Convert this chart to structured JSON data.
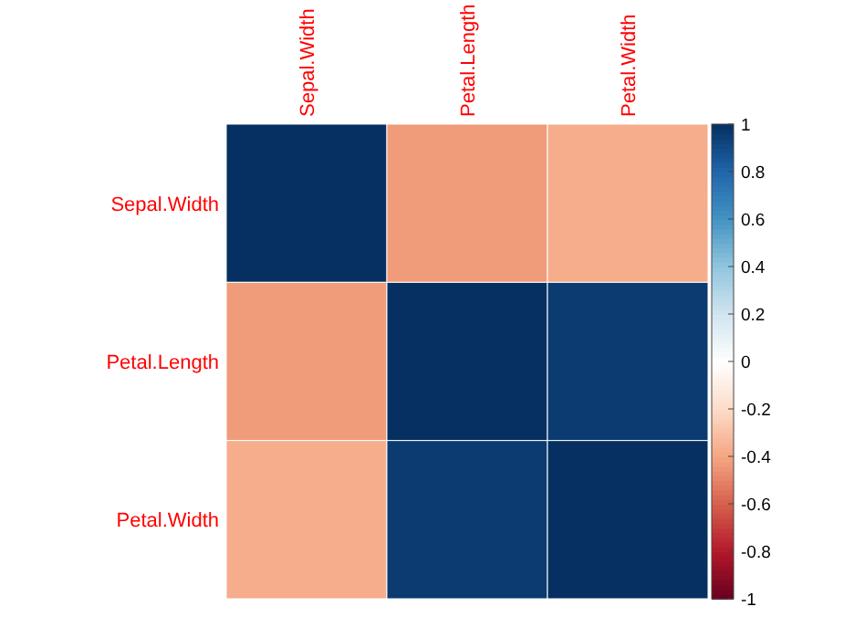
{
  "chart_data": {
    "type": "heatmap",
    "categories": [
      "Sepal.Width",
      "Petal.Length",
      "Petal.Width"
    ],
    "y_categories": [
      "Sepal.Width",
      "Petal.Length",
      "Petal.Width"
    ],
    "cells": [
      [
        1,
        -0.43,
        -0.37
      ],
      [
        -0.43,
        1,
        0.96
      ],
      [
        -0.37,
        0.96,
        1
      ]
    ],
    "clim": [
      -1,
      1
    ],
    "cticks": [
      -1,
      -0.8,
      -0.6,
      -0.4,
      -0.2,
      0,
      0.2,
      0.4,
      0.6,
      0.8,
      1
    ]
  }
}
